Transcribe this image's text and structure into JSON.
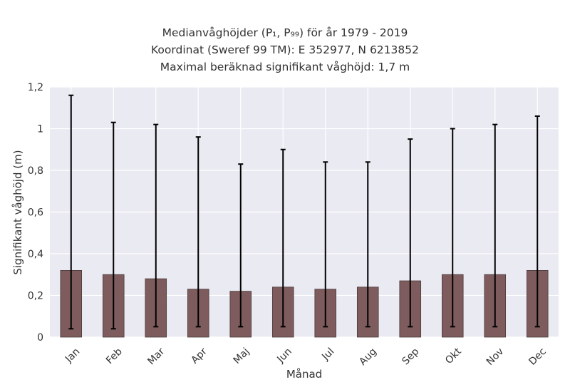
{
  "chart_data": {
    "type": "bar",
    "title_lines": [
      "Medianvåghöjder (P₁, P₉₉) för år 1979 - 2019",
      "Koordinat (Sweref 99 TM): E 352977, N 6213852",
      "Maximal beräknad signifikant våghöjd: 1,7 m"
    ],
    "xlabel": "Månad",
    "ylabel": "Signifikant våghöjd (m)",
    "categories": [
      "Jan",
      "Feb",
      "Mar",
      "Apr",
      "Maj",
      "Jun",
      "Jul",
      "Aug",
      "Sep",
      "Okt",
      "Nov",
      "Dec"
    ],
    "values": [
      0.32,
      0.3,
      0.28,
      0.23,
      0.22,
      0.24,
      0.23,
      0.24,
      0.27,
      0.3,
      0.3,
      0.32
    ],
    "error_low": [
      0.04,
      0.04,
      0.05,
      0.05,
      0.05,
      0.05,
      0.05,
      0.05,
      0.05,
      0.05,
      0.05,
      0.05
    ],
    "error_high": [
      1.16,
      1.03,
      1.02,
      0.96,
      0.83,
      0.9,
      0.84,
      0.84,
      0.95,
      1.0,
      1.02,
      1.06
    ],
    "ylim": [
      0,
      1.2
    ],
    "yticks": [
      0,
      0.2,
      0.4,
      0.6,
      0.8,
      1,
      1.2
    ],
    "ytick_labels": [
      "0",
      "0,2",
      "0,4",
      "0,6",
      "0,8",
      "1",
      "1,2"
    ],
    "grid": true,
    "colors": {
      "bar": "#7e5c5d",
      "bar_edge": "#4a3a3a",
      "error_bar": "#000000",
      "plot_background": "#eaeaf2",
      "grid": "#ffffff"
    }
  }
}
